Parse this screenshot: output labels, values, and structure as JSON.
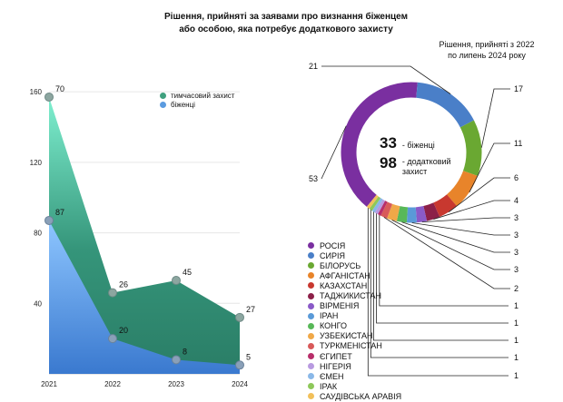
{
  "title_line1": "Рішення, прийняті за заявами про визнання біженцем",
  "title_line2": "або особою, яка потребує додаткового захисту",
  "area_chart": {
    "colors": {
      "temporary": "#2f8f70",
      "refugees": "#4a8fe0"
    },
    "legend": [
      {
        "label": "тимчасовий захист",
        "color": "#3fa07e"
      },
      {
        "label": "біженці",
        "color": "#5b9be0"
      }
    ]
  },
  "donut": {
    "subtitle_line1": "Рішення, прийняті з 2022",
    "subtitle_line2": "по липень 2024 року",
    "center": {
      "refugees_value": "33",
      "refugees_label": "- біженці",
      "additional_value": "98",
      "additional_label_line1": "- додатковий",
      "additional_label_line2": "захист"
    }
  },
  "chart_data": [
    {
      "type": "area",
      "x": [
        "2021",
        "2022",
        "2023",
        "2024"
      ],
      "y_ticks": [
        40,
        80,
        120,
        160
      ],
      "ylim": [
        0,
        175
      ],
      "series": [
        {
          "name": "тимчасовий захист",
          "values": [
            70,
            26,
            45,
            27
          ]
        },
        {
          "name": "біженці",
          "values": [
            87,
            20,
            8,
            5
          ]
        }
      ]
    },
    {
      "type": "pie",
      "categories": [
        "РОСІЯ",
        "СИРІЯ",
        "БІЛОРУСЬ",
        "АФГАНІСТАН",
        "КАЗАХСТАН",
        "ТАДЖИКИСТАН",
        "ВІРМЕНІЯ",
        "ІРАН",
        "КОНГО",
        "УЗБЕКИСТАН",
        "ТУРКМЕНІСТАН",
        "ЄГИПЕТ",
        "НІГЕРІЯ",
        "ЄМЕН",
        "ІРАК",
        "САУДІВСЬКА АРАВІЯ"
      ],
      "values": [
        53,
        21,
        17,
        11,
        6,
        4,
        3,
        3,
        3,
        3,
        2,
        1,
        1,
        1,
        1,
        1
      ],
      "colors": [
        "#7a2fa0",
        "#4a7fc8",
        "#6aa832",
        "#e8842a",
        "#c8382f",
        "#8c2048",
        "#8a5ac8",
        "#5a9ad8",
        "#58b858",
        "#f0a848",
        "#d85a5a",
        "#b82e6a",
        "#b89ae0",
        "#8ab8e8",
        "#8ec85a",
        "#f2c05a"
      ]
    }
  ]
}
